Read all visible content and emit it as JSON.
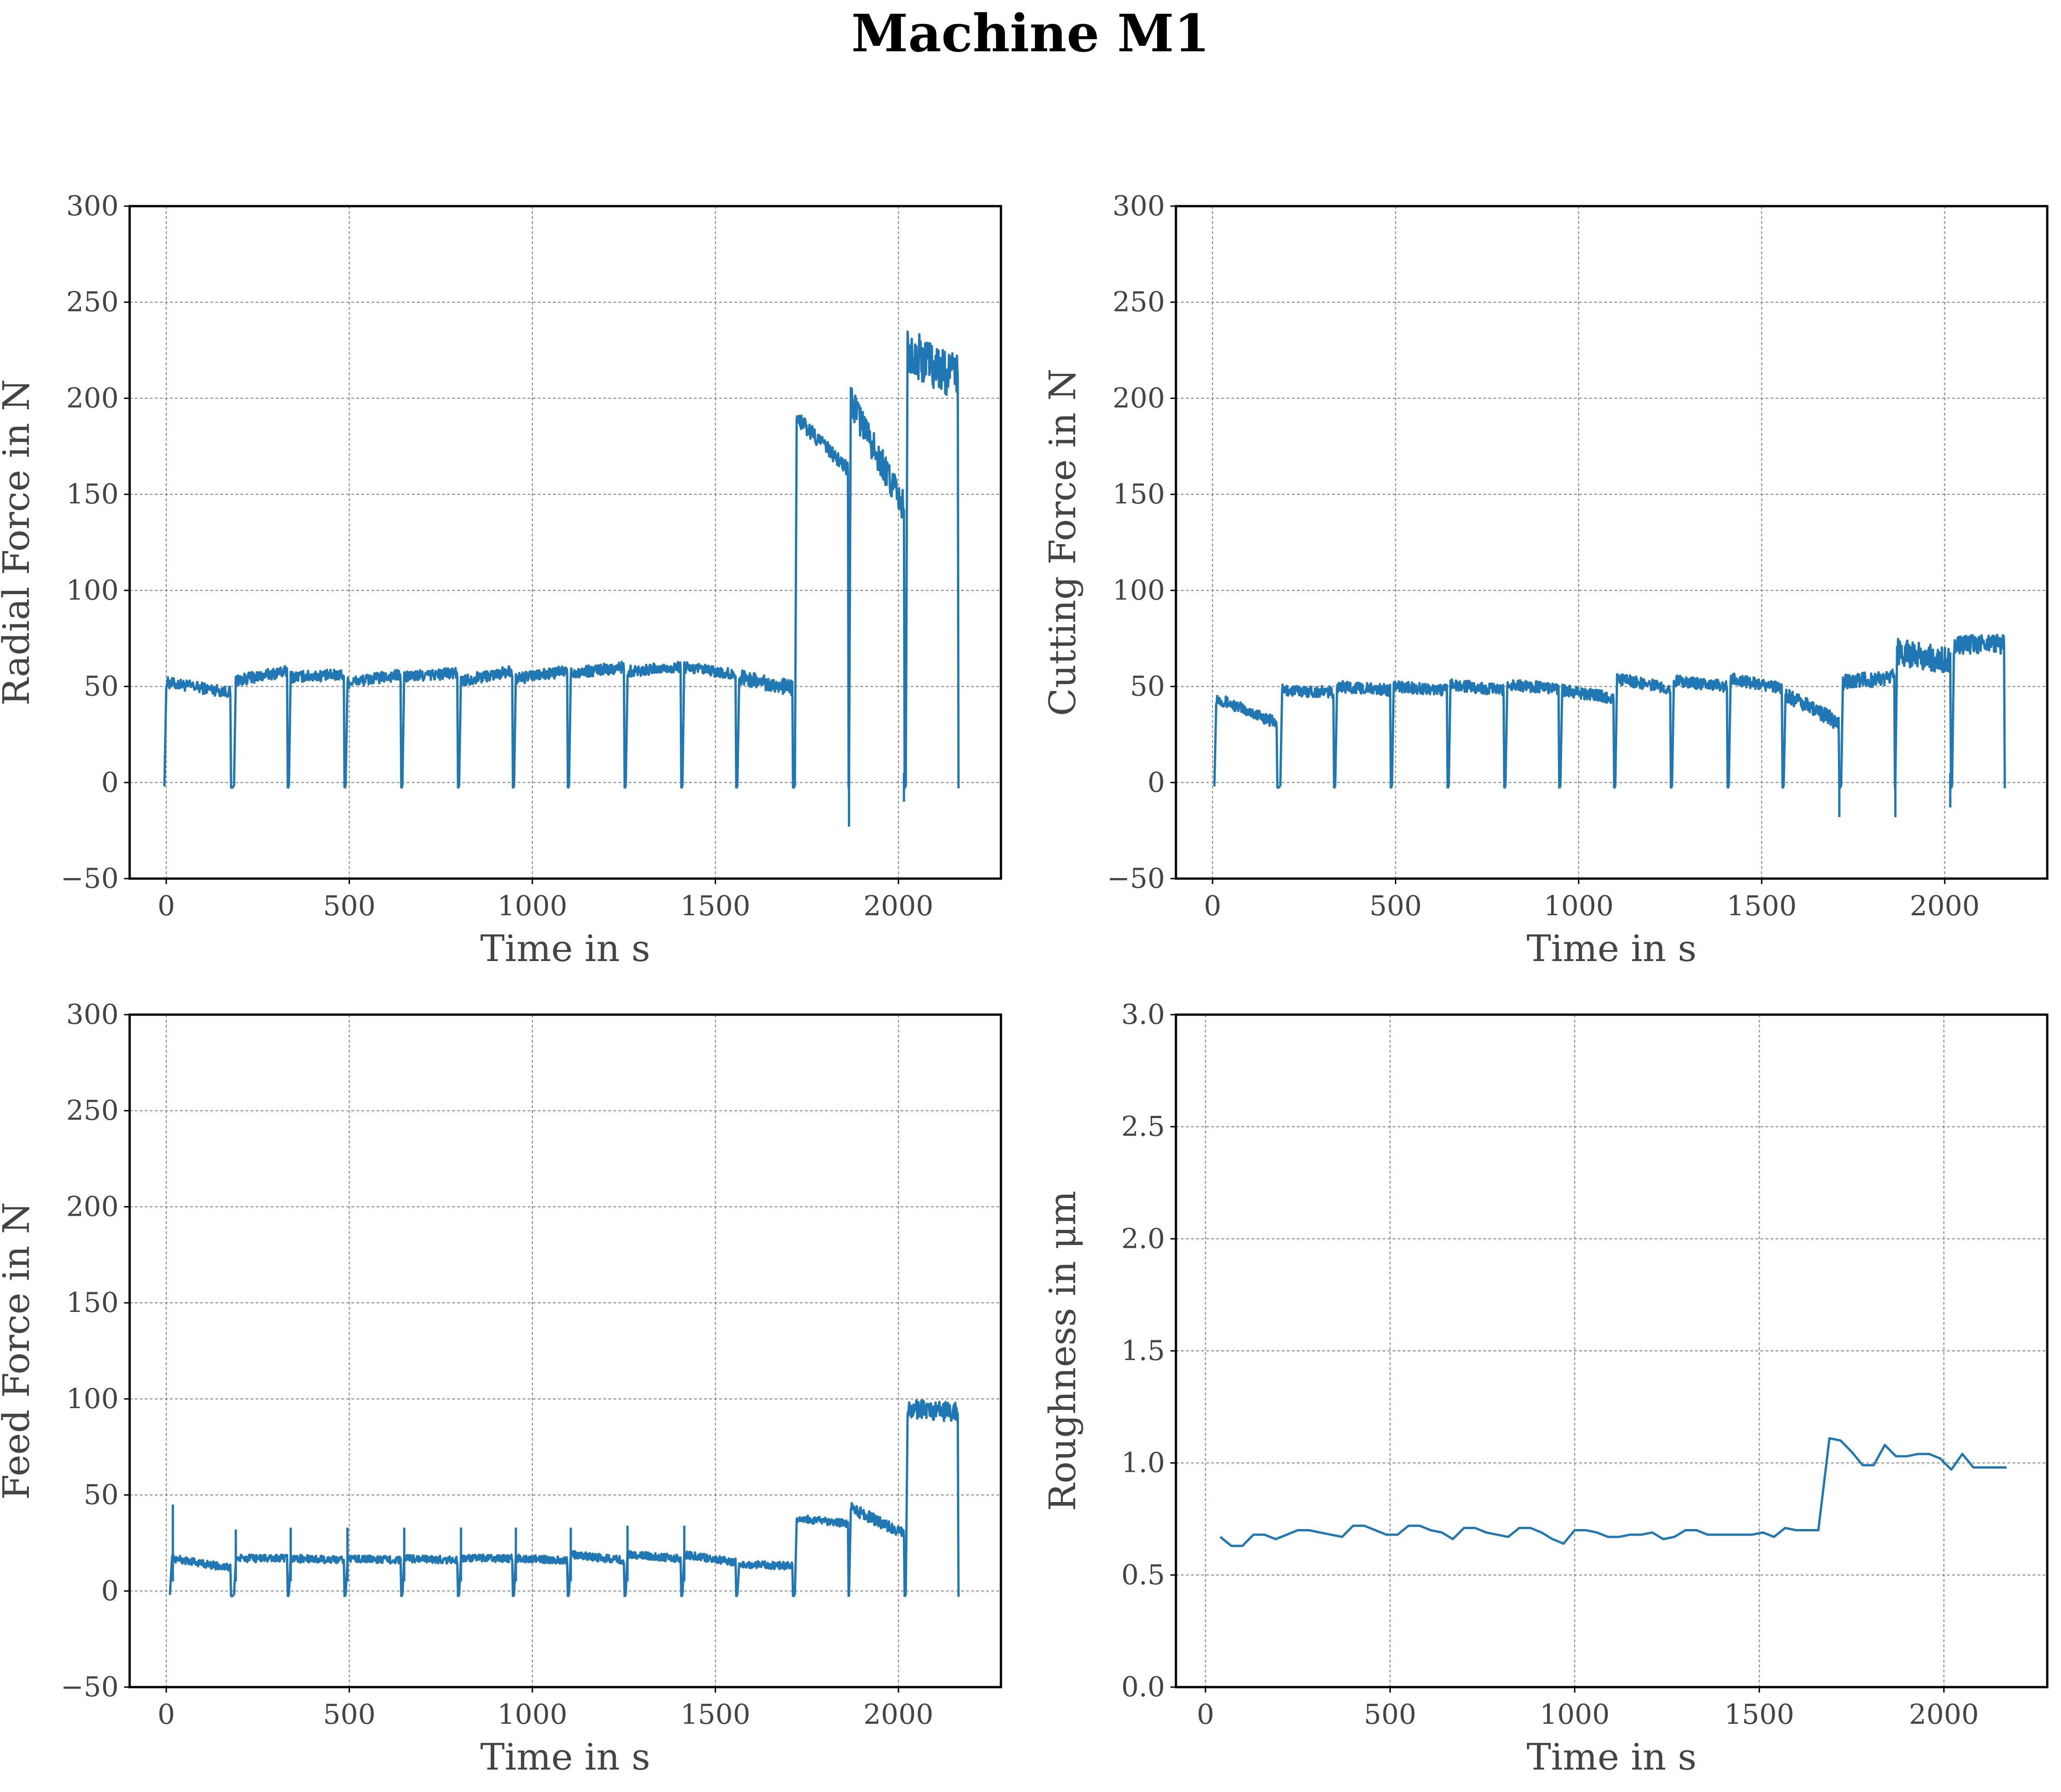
{
  "figure": {
    "title": "Machine M1"
  },
  "colors": {
    "series": "#1f77b4",
    "grid": "#808080",
    "frame": "#000000",
    "text": "#444444"
  },
  "chart_data": [
    {
      "type": "line",
      "xlabel": "Time in s",
      "ylabel": "Radial Force in N",
      "xlim": [
        -100,
        2280
      ],
      "ylim": [
        -50,
        300
      ],
      "xticks": [
        0,
        500,
        1000,
        1500,
        2000
      ],
      "yticks": [
        -50,
        0,
        50,
        100,
        150,
        200,
        250,
        300
      ],
      "ytick_labels": [
        "−50",
        "0",
        "50",
        "100",
        "150",
        "200",
        "250",
        "300"
      ],
      "grid": true,
      "segments": [
        {
          "start": 0,
          "end": 175,
          "s": 52,
          "e": 47,
          "n": 3
        },
        {
          "start": 190,
          "end": 330,
          "s": 53,
          "e": 58,
          "n": 3
        },
        {
          "start": 340,
          "end": 485,
          "s": 55,
          "e": 56,
          "n": 3
        },
        {
          "start": 495,
          "end": 640,
          "s": 52,
          "e": 56,
          "n": 3
        },
        {
          "start": 650,
          "end": 795,
          "s": 55,
          "e": 57,
          "n": 3
        },
        {
          "start": 805,
          "end": 945,
          "s": 53,
          "e": 58,
          "n": 3
        },
        {
          "start": 955,
          "end": 1095,
          "s": 54,
          "e": 58,
          "n": 3
        },
        {
          "start": 1105,
          "end": 1250,
          "s": 57,
          "e": 60,
          "n": 3
        },
        {
          "start": 1260,
          "end": 1405,
          "s": 58,
          "e": 60,
          "n": 3
        },
        {
          "start": 1415,
          "end": 1555,
          "s": 60,
          "e": 56,
          "n": 3
        },
        {
          "start": 1565,
          "end": 1710,
          "s": 55,
          "e": 49,
          "n": 4
        },
        {
          "start": 1722,
          "end": 1862,
          "s": 190,
          "e": 163,
          "n": 4
        },
        {
          "start": 1870,
          "end": 2015,
          "s": 198,
          "e": 143,
          "n": 8
        },
        {
          "start": 2025,
          "end": 2162,
          "s": 225,
          "e": 210,
          "n": 12
        }
      ],
      "spikes": [
        {
          "x": 1865,
          "y": -23
        },
        {
          "x": 2015,
          "y": -10
        }
      ]
    },
    {
      "type": "line",
      "xlabel": "Time in s",
      "ylabel": "Cutting Force in N",
      "xlim": [
        -100,
        2280
      ],
      "ylim": [
        -50,
        300
      ],
      "xticks": [
        0,
        500,
        1000,
        1500,
        2000
      ],
      "yticks": [
        -50,
        0,
        50,
        100,
        150,
        200,
        250,
        300
      ],
      "ytick_labels": [
        "−50",
        "0",
        "50",
        "100",
        "150",
        "200",
        "250",
        "300"
      ],
      "grid": true,
      "segments": [
        {
          "start": 10,
          "end": 175,
          "s": 44,
          "e": 31,
          "n": 3
        },
        {
          "start": 190,
          "end": 330,
          "s": 48,
          "e": 47,
          "n": 3
        },
        {
          "start": 340,
          "end": 485,
          "s": 50,
          "e": 48,
          "n": 3
        },
        {
          "start": 495,
          "end": 640,
          "s": 50,
          "e": 48,
          "n": 3
        },
        {
          "start": 650,
          "end": 795,
          "s": 51,
          "e": 48,
          "n": 3
        },
        {
          "start": 805,
          "end": 945,
          "s": 51,
          "e": 49,
          "n": 3
        },
        {
          "start": 955,
          "end": 1095,
          "s": 48,
          "e": 44,
          "n": 3
        },
        {
          "start": 1105,
          "end": 1250,
          "s": 54,
          "e": 49,
          "n": 3
        },
        {
          "start": 1260,
          "end": 1405,
          "s": 53,
          "e": 50,
          "n": 3
        },
        {
          "start": 1415,
          "end": 1555,
          "s": 54,
          "e": 49,
          "n": 3
        },
        {
          "start": 1565,
          "end": 1710,
          "s": 46,
          "e": 31,
          "n": 4
        },
        {
          "start": 1722,
          "end": 1862,
          "s": 52,
          "e": 55,
          "n": 4
        },
        {
          "start": 1870,
          "end": 2015,
          "s": 68,
          "e": 63,
          "n": 7
        },
        {
          "start": 2025,
          "end": 2162,
          "s": 72,
          "e": 72,
          "n": 5
        }
      ],
      "spikes": [
        {
          "x": 1712,
          "y": -18
        },
        {
          "x": 1865,
          "y": -18
        },
        {
          "x": 2015,
          "y": -13
        }
      ]
    },
    {
      "type": "line",
      "xlabel": "Time in s",
      "ylabel": "Feed Force in N",
      "xlim": [
        -100,
        2280
      ],
      "ylim": [
        -50,
        300
      ],
      "xticks": [
        0,
        500,
        1000,
        1500,
        2000
      ],
      "yticks": [
        -50,
        0,
        50,
        100,
        150,
        200,
        250,
        300
      ],
      "ytick_labels": [
        "−50",
        "0",
        "50",
        "100",
        "150",
        "200",
        "250",
        "300"
      ],
      "grid": true,
      "segments": [
        {
          "start": 15,
          "end": 175,
          "s": 17,
          "e": 12,
          "n": 2
        },
        {
          "start": 190,
          "end": 330,
          "s": 17,
          "e": 17,
          "n": 2
        },
        {
          "start": 340,
          "end": 485,
          "s": 17,
          "e": 16,
          "n": 2
        },
        {
          "start": 495,
          "end": 640,
          "s": 17,
          "e": 16,
          "n": 2
        },
        {
          "start": 650,
          "end": 795,
          "s": 17,
          "e": 16,
          "n": 2
        },
        {
          "start": 805,
          "end": 945,
          "s": 17,
          "e": 17,
          "n": 2
        },
        {
          "start": 955,
          "end": 1095,
          "s": 17,
          "e": 16,
          "n": 2
        },
        {
          "start": 1105,
          "end": 1250,
          "s": 19,
          "e": 16,
          "n": 2
        },
        {
          "start": 1260,
          "end": 1405,
          "s": 19,
          "e": 17,
          "n": 2
        },
        {
          "start": 1415,
          "end": 1555,
          "s": 19,
          "e": 15,
          "n": 2
        },
        {
          "start": 1565,
          "end": 1710,
          "s": 14,
          "e": 13,
          "n": 2
        },
        {
          "start": 1722,
          "end": 1862,
          "s": 38,
          "e": 35,
          "n": 2
        },
        {
          "start": 1870,
          "end": 2015,
          "s": 43,
          "e": 30,
          "n": 3
        },
        {
          "start": 2025,
          "end": 2162,
          "s": 95,
          "e": 93,
          "n": 5
        }
      ],
      "spikes": [
        {
          "x": 18,
          "y": 45
        },
        {
          "x": 190,
          "y": 32
        },
        {
          "x": 340,
          "y": 33
        },
        {
          "x": 495,
          "y": 33
        },
        {
          "x": 650,
          "y": 33
        },
        {
          "x": 805,
          "y": 33
        },
        {
          "x": 955,
          "y": 33
        },
        {
          "x": 1105,
          "y": 33
        },
        {
          "x": 1260,
          "y": 34
        },
        {
          "x": 1415,
          "y": 34
        }
      ]
    },
    {
      "type": "line",
      "xlabel": "Time in s",
      "ylabel": "Roughness in μm",
      "xlim": [
        -80,
        2280
      ],
      "ylim": [
        0,
        3
      ],
      "xticks": [
        0,
        500,
        1000,
        1500,
        2000
      ],
      "yticks": [
        0,
        0.5,
        1.0,
        1.5,
        2.0,
        2.5,
        3.0
      ],
      "ytick_labels": [
        "0.0",
        "0.5",
        "1.0",
        "1.5",
        "2.0",
        "2.5",
        "3.0"
      ],
      "grid": true,
      "x": [
        40,
        70,
        100,
        130,
        160,
        190,
        220,
        250,
        280,
        310,
        340,
        370,
        400,
        430,
        460,
        490,
        520,
        550,
        580,
        610,
        640,
        670,
        700,
        730,
        760,
        790,
        820,
        850,
        880,
        910,
        940,
        970,
        1000,
        1030,
        1060,
        1090,
        1120,
        1150,
        1180,
        1210,
        1240,
        1270,
        1300,
        1330,
        1360,
        1390,
        1420,
        1450,
        1480,
        1510,
        1540,
        1570,
        1600,
        1630,
        1660,
        1690,
        1720,
        1750,
        1780,
        1810,
        1840,
        1870,
        1900,
        1930,
        1960,
        1990,
        2020,
        2050,
        2080,
        2110,
        2140,
        2170
      ],
      "y": [
        0.67,
        0.63,
        0.63,
        0.68,
        0.68,
        0.66,
        0.68,
        0.7,
        0.7,
        0.69,
        0.68,
        0.67,
        0.72,
        0.72,
        0.7,
        0.68,
        0.68,
        0.72,
        0.72,
        0.7,
        0.69,
        0.66,
        0.71,
        0.71,
        0.69,
        0.68,
        0.67,
        0.71,
        0.71,
        0.69,
        0.66,
        0.64,
        0.7,
        0.7,
        0.69,
        0.67,
        0.67,
        0.68,
        0.68,
        0.69,
        0.66,
        0.67,
        0.7,
        0.7,
        0.68,
        0.68,
        0.68,
        0.68,
        0.68,
        0.69,
        0.67,
        0.71,
        0.7,
        0.7,
        0.7,
        1.11,
        1.1,
        1.05,
        0.99,
        0.99,
        1.08,
        1.03,
        1.03,
        1.04,
        1.04,
        1.02,
        0.97,
        1.04,
        0.98,
        0.98,
        0.98,
        0.98
      ]
    }
  ]
}
